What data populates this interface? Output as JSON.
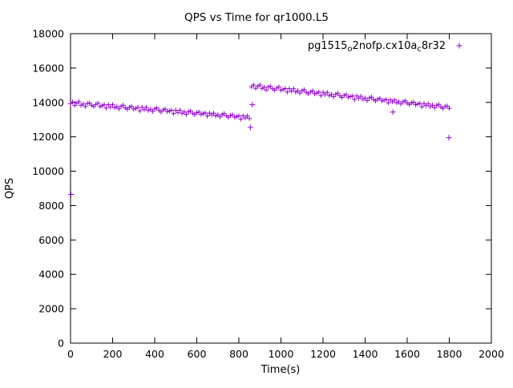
{
  "title": "QPS vs Time for qr1000.L5",
  "legend": {
    "parts": [
      {
        "text": "pg1515"
      },
      {
        "sub": "o"
      },
      {
        "text": "2nofp.cx10a"
      },
      {
        "sub": "c"
      },
      {
        "text": "8r32"
      }
    ],
    "marker": "+"
  },
  "chart_data": {
    "type": "scatter",
    "title": "QPS vs Time for qr1000.L5",
    "xlabel": "Time(s)",
    "ylabel": "QPS",
    "xlim": [
      0,
      2000
    ],
    "ylim": [
      0,
      18000
    ],
    "xticks": [
      0,
      200,
      400,
      600,
      800,
      1000,
      1200,
      1400,
      1600,
      1800,
      2000
    ],
    "yticks": [
      0,
      2000,
      4000,
      6000,
      8000,
      10000,
      12000,
      14000,
      16000,
      18000
    ],
    "grid": false,
    "legend_position": "top-right-inside",
    "marker": "plus",
    "color": "#9400D3",
    "axis_color": "#000000",
    "series": [
      {
        "name": "pg1515_o2nofp.cx10a_c8r32",
        "points": [
          [
            0,
            13920
          ],
          [
            10,
            14030
          ],
          [
            20,
            13830
          ],
          [
            30,
            13960
          ],
          [
            40,
            14040
          ],
          [
            50,
            13840
          ],
          [
            60,
            13910
          ],
          [
            70,
            13760
          ],
          [
            80,
            13940
          ],
          [
            90,
            13970
          ],
          [
            100,
            13840
          ],
          [
            110,
            13760
          ],
          [
            120,
            13880
          ],
          [
            130,
            13960
          ],
          [
            140,
            13770
          ],
          [
            150,
            13810
          ],
          [
            160,
            13870
          ],
          [
            170,
            13670
          ],
          [
            180,
            13870
          ],
          [
            190,
            13740
          ],
          [
            200,
            13870
          ],
          [
            210,
            13690
          ],
          [
            220,
            13760
          ],
          [
            230,
            13630
          ],
          [
            240,
            13770
          ],
          [
            250,
            13835
          ],
          [
            260,
            13685
          ],
          [
            270,
            13605
          ],
          [
            280,
            13715
          ],
          [
            290,
            13775
          ],
          [
            300,
            13615
          ],
          [
            310,
            13655
          ],
          [
            320,
            13715
          ],
          [
            330,
            13515
          ],
          [
            340,
            13715
          ],
          [
            350,
            13585
          ],
          [
            360,
            13715
          ],
          [
            370,
            13535
          ],
          [
            380,
            13605
          ],
          [
            390,
            13475
          ],
          [
            400,
            13615
          ],
          [
            410,
            13680
          ],
          [
            420,
            13540
          ],
          [
            430,
            13450
          ],
          [
            440,
            13565
          ],
          [
            450,
            13610
          ],
          [
            460,
            13465
          ],
          [
            470,
            13505
          ],
          [
            480,
            13545
          ],
          [
            490,
            13345
          ],
          [
            500,
            13545
          ],
          [
            510,
            13420
          ],
          [
            520,
            13545
          ],
          [
            530,
            13365
          ],
          [
            540,
            13450
          ],
          [
            550,
            13305
          ],
          [
            560,
            13450
          ],
          [
            570,
            13510
          ],
          [
            580,
            13375
          ],
          [
            590,
            13295
          ],
          [
            600,
            13400
          ],
          [
            610,
            13445
          ],
          [
            620,
            13310
          ],
          [
            630,
            13350
          ],
          [
            640,
            13390
          ],
          [
            650,
            13200
          ],
          [
            660,
            13380
          ],
          [
            670,
            13275
          ],
          [
            680,
            13380
          ],
          [
            690,
            13220
          ],
          [
            700,
            13285
          ],
          [
            710,
            13160
          ],
          [
            720,
            13285
          ],
          [
            730,
            13345
          ],
          [
            740,
            13220
          ],
          [
            750,
            13140
          ],
          [
            760,
            13235
          ],
          [
            770,
            13280
          ],
          [
            780,
            13140
          ],
          [
            790,
            13180
          ],
          [
            800,
            13220
          ],
          [
            810,
            13030
          ],
          [
            820,
            13215
          ],
          [
            830,
            13105
          ],
          [
            840,
            13215
          ],
          [
            850,
            13060
          ],
          [
            860,
            14910
          ],
          [
            870,
            15015
          ],
          [
            880,
            14815
          ],
          [
            890,
            14940
          ],
          [
            900,
            15015
          ],
          [
            910,
            14815
          ],
          [
            920,
            14880
          ],
          [
            930,
            14725
          ],
          [
            940,
            14905
          ],
          [
            950,
            14930
          ],
          [
            960,
            14795
          ],
          [
            970,
            14715
          ],
          [
            980,
            14830
          ],
          [
            990,
            14905
          ],
          [
            1000,
            14715
          ],
          [
            1010,
            14750
          ],
          [
            1020,
            14805
          ],
          [
            1030,
            14605
          ],
          [
            1040,
            14800
          ],
          [
            1050,
            14665
          ],
          [
            1060,
            14795
          ],
          [
            1070,
            14610
          ],
          [
            1080,
            14675
          ],
          [
            1090,
            14545
          ],
          [
            1100,
            14680
          ],
          [
            1110,
            14740
          ],
          [
            1120,
            14590
          ],
          [
            1130,
            14505
          ],
          [
            1140,
            14610
          ],
          [
            1150,
            14670
          ],
          [
            1160,
            14505
          ],
          [
            1170,
            14540
          ],
          [
            1180,
            14600
          ],
          [
            1190,
            14395
          ],
          [
            1200,
            14590
          ],
          [
            1210,
            14460
          ],
          [
            1220,
            14585
          ],
          [
            1230,
            14400
          ],
          [
            1240,
            14470
          ],
          [
            1250,
            14335
          ],
          [
            1260,
            14470
          ],
          [
            1270,
            14535
          ],
          [
            1280,
            14380
          ],
          [
            1290,
            14295
          ],
          [
            1300,
            14410
          ],
          [
            1310,
            14450
          ],
          [
            1320,
            14300
          ],
          [
            1330,
            14340
          ],
          [
            1340,
            14375
          ],
          [
            1350,
            14170
          ],
          [
            1360,
            14370
          ],
          [
            1370,
            14250
          ],
          [
            1380,
            14360
          ],
          [
            1390,
            14180
          ],
          [
            1400,
            14260
          ],
          [
            1410,
            14110
          ],
          [
            1420,
            14255
          ],
          [
            1430,
            14310
          ],
          [
            1440,
            14170
          ],
          [
            1450,
            14090
          ],
          [
            1460,
            14190
          ],
          [
            1470,
            14230
          ],
          [
            1480,
            14095
          ],
          [
            1490,
            14130
          ],
          [
            1500,
            14165
          ],
          [
            1510,
            13975
          ],
          [
            1520,
            14150
          ],
          [
            1530,
            14040
          ],
          [
            1540,
            14145
          ],
          [
            1550,
            13980
          ],
          [
            1560,
            14040
          ],
          [
            1570,
            13915
          ],
          [
            1580,
            14035
          ],
          [
            1590,
            14090
          ],
          [
            1600,
            13965
          ],
          [
            1610,
            13880
          ],
          [
            1620,
            13970
          ],
          [
            1630,
            14015
          ],
          [
            1640,
            13870
          ],
          [
            1650,
            13905
          ],
          [
            1660,
            13945
          ],
          [
            1670,
            13750
          ],
          [
            1680,
            13930
          ],
          [
            1690,
            13820
          ],
          [
            1700,
            13925
          ],
          [
            1710,
            13755
          ],
          [
            1720,
            13835
          ],
          [
            1730,
            13690
          ],
          [
            1740,
            13830
          ],
          [
            1750,
            13885
          ],
          [
            1760,
            13740
          ],
          [
            1770,
            13655
          ],
          [
            1780,
            13765
          ],
          [
            1790,
            13795
          ],
          [
            1800,
            13660
          ]
        ]
      }
    ],
    "outliers": [
      [
        2,
        8650
      ],
      [
        855,
        12550
      ],
      [
        864,
        13870
      ],
      [
        1532,
        13440
      ],
      [
        1798,
        11950
      ]
    ]
  }
}
